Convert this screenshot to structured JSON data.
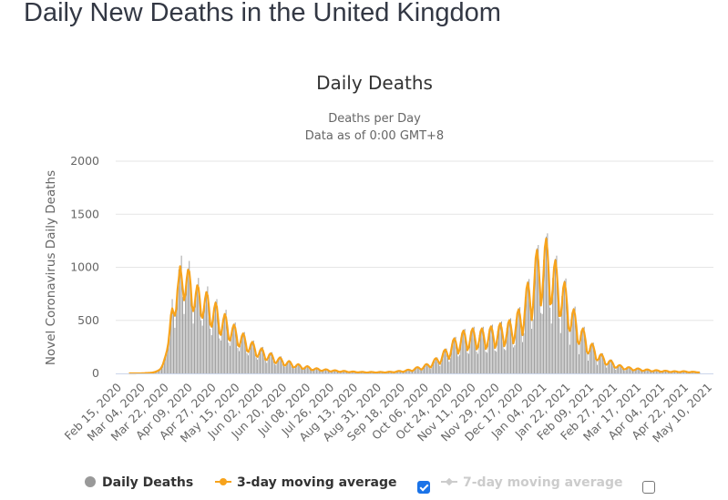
{
  "page": {
    "title": "Daily New Deaths in the United Kingdom"
  },
  "legend": {
    "items": [
      {
        "label": "Daily Deaths",
        "symbol": "circle",
        "color": "#999999",
        "active": true
      },
      {
        "label": "3-day moving average",
        "symbol": "line-circle",
        "color": "#f7a31c",
        "active": true
      },
      {
        "label": "7-day moving average",
        "symbol": "line-diamond",
        "color": "#cccccc",
        "active": false
      }
    ],
    "checkbox_3day_checked": true,
    "checkbox_7day_checked": false
  },
  "chart_data": {
    "type": "bar",
    "title": "Daily Deaths",
    "subtitle_line1": "Deaths per Day",
    "subtitle_line2": "Data as of 0:00 GMT+8",
    "xlabel": "",
    "ylabel": "Novel Coronavirus Daily Deaths",
    "ylim": [
      0,
      2000
    ],
    "yticks": [
      "0",
      "500",
      "1000",
      "1500",
      "2000"
    ],
    "grid": true,
    "legend_position": "bottom",
    "start_date": "Feb 15, 2020",
    "tick_interval_days": 18,
    "x_tick_labels": [
      "Feb 15, 2020",
      "Mar 04, 2020",
      "Mar 22, 2020",
      "Apr 09, 2020",
      "Apr 27, 2020",
      "May 15, 2020",
      "Jun 02, 2020",
      "Jun 20, 2020",
      "Jul 08, 2020",
      "Jul 26, 2020",
      "Aug 13, 2020",
      "Aug 31, 2020",
      "Sep 18, 2020",
      "Oct 06, 2020",
      "Oct 24, 2020",
      "Nov 11, 2020",
      "Nov 29, 2020",
      "Dec 17, 2020",
      "Jan 04, 2021",
      "Jan 22, 2021",
      "Feb 09, 2021",
      "Feb 27, 2021",
      "Mar 17, 2021",
      "Apr 04, 2021",
      "Apr 22, 2021",
      "May 10, 2021"
    ],
    "series": [
      {
        "name": "Daily Deaths",
        "type": "bar",
        "color": "#999999",
        "values": [
          0,
          0,
          0,
          0,
          0,
          0,
          0,
          0,
          0,
          0,
          0,
          0,
          0,
          0,
          0,
          1,
          0,
          1,
          1,
          1,
          2,
          3,
          4,
          3,
          5,
          6,
          10,
          8,
          14,
          20,
          25,
          30,
          40,
          55,
          90,
          120,
          180,
          210,
          260,
          380,
          560,
          700,
          580,
          430,
          620,
          760,
          980,
          940,
          1110,
          720,
          560,
          790,
          880,
          990,
          1060,
          830,
          620,
          470,
          670,
          760,
          830,
          900,
          690,
          500,
          450,
          620,
          710,
          770,
          820,
          610,
          420,
          360,
          540,
          620,
          680,
          700,
          500,
          330,
          310,
          450,
          520,
          560,
          600,
          420,
          290,
          260,
          380,
          440,
          460,
          480,
          350,
          240,
          210,
          310,
          360,
          380,
          390,
          280,
          190,
          170,
          250,
          280,
          300,
          310,
          220,
          150,
          130,
          190,
          220,
          240,
          250,
          170,
          120,
          100,
          160,
          180,
          190,
          200,
          140,
          90,
          80,
          120,
          140,
          150,
          160,
          110,
          70,
          60,
          90,
          110,
          120,
          120,
          80,
          55,
          45,
          70,
          80,
          90,
          90,
          60,
          40,
          35,
          55,
          65,
          70,
          70,
          45,
          30,
          25,
          40,
          45,
          50,
          50,
          35,
          22,
          20,
          30,
          35,
          40,
          40,
          27,
          17,
          15,
          25,
          27,
          30,
          30,
          20,
          13,
          12,
          20,
          22,
          24,
          24,
          16,
          10,
          10,
          16,
          17,
          18,
          18,
          12,
          8,
          8,
          13,
          14,
          14,
          14,
          10,
          7,
          7,
          12,
          13,
          14,
          14,
          9,
          6,
          7,
          12,
          13,
          14,
          14,
          9,
          7,
          8,
          14,
          15,
          16,
          16,
          11,
          8,
          11,
          20,
          22,
          24,
          24,
          16,
          11,
          16,
          30,
          33,
          36,
          36,
          24,
          17,
          27,
          50,
          55,
          60,
          60,
          40,
          28,
          40,
          75,
          83,
          90,
          90,
          60,
          42,
          65,
          120,
          135,
          145,
          150,
          100,
          70,
          100,
          190,
          210,
          230,
          235,
          155,
          110,
          145,
          280,
          310,
          335,
          345,
          225,
          160,
          175,
          340,
          380,
          410,
          420,
          275,
          195,
          185,
          360,
          400,
          430,
          440,
          290,
          205,
          185,
          360,
          400,
          430,
          440,
          290,
          205,
          195,
          375,
          420,
          450,
          460,
          300,
          215,
          205,
          400,
          445,
          480,
          490,
          320,
          230,
          220,
          430,
          475,
          510,
          520,
          340,
          245,
          265,
          510,
          570,
          615,
          625,
          410,
          295,
          380,
          720,
          805,
          870,
          890,
          580,
          420,
          510,
          980,
          1100,
          1180,
          1210,
          790,
          570,
          560,
          1070,
          1200,
          1290,
          1320,
          860,
          620,
          470,
          900,
          1010,
          1080,
          1110,
          720,
          520,
          380,
          730,
          810,
          875,
          895,
          585,
          420,
          270,
          510,
          570,
          615,
          630,
          410,
          295,
          180,
          360,
          400,
          430,
          440,
          290,
          205,
          120,
          240,
          265,
          285,
          290,
          190,
          135,
          80,
          155,
          170,
          185,
          190,
          125,
          90,
          55,
          100,
          115,
          125,
          130,
          85,
          60,
          35,
          65,
          75,
          80,
          80,
          55,
          40,
          25,
          50,
          55,
          60,
          60,
          40,
          30,
          20,
          40,
          45,
          48,
          48,
          33,
          24,
          17,
          32,
          36,
          38,
          38,
          27,
          19,
          13,
          27,
          29,
          31,
          31,
          22,
          16,
          11,
          22,
          24,
          26,
          26,
          18,
          13,
          9,
          18,
          20,
          21,
          21,
          15,
          11,
          9,
          18,
          20,
          21,
          21,
          15,
          11,
          7,
          14,
          15,
          16,
          16,
          12,
          9,
          7,
          12
        ]
      },
      {
        "name": "3-day moving average",
        "type": "line",
        "color": "#f7a31c",
        "values": "derived: 3-day centered moving average of Daily Deaths"
      },
      {
        "name": "7-day moving average",
        "type": "line",
        "color": "#cccccc",
        "hidden": true
      }
    ]
  }
}
